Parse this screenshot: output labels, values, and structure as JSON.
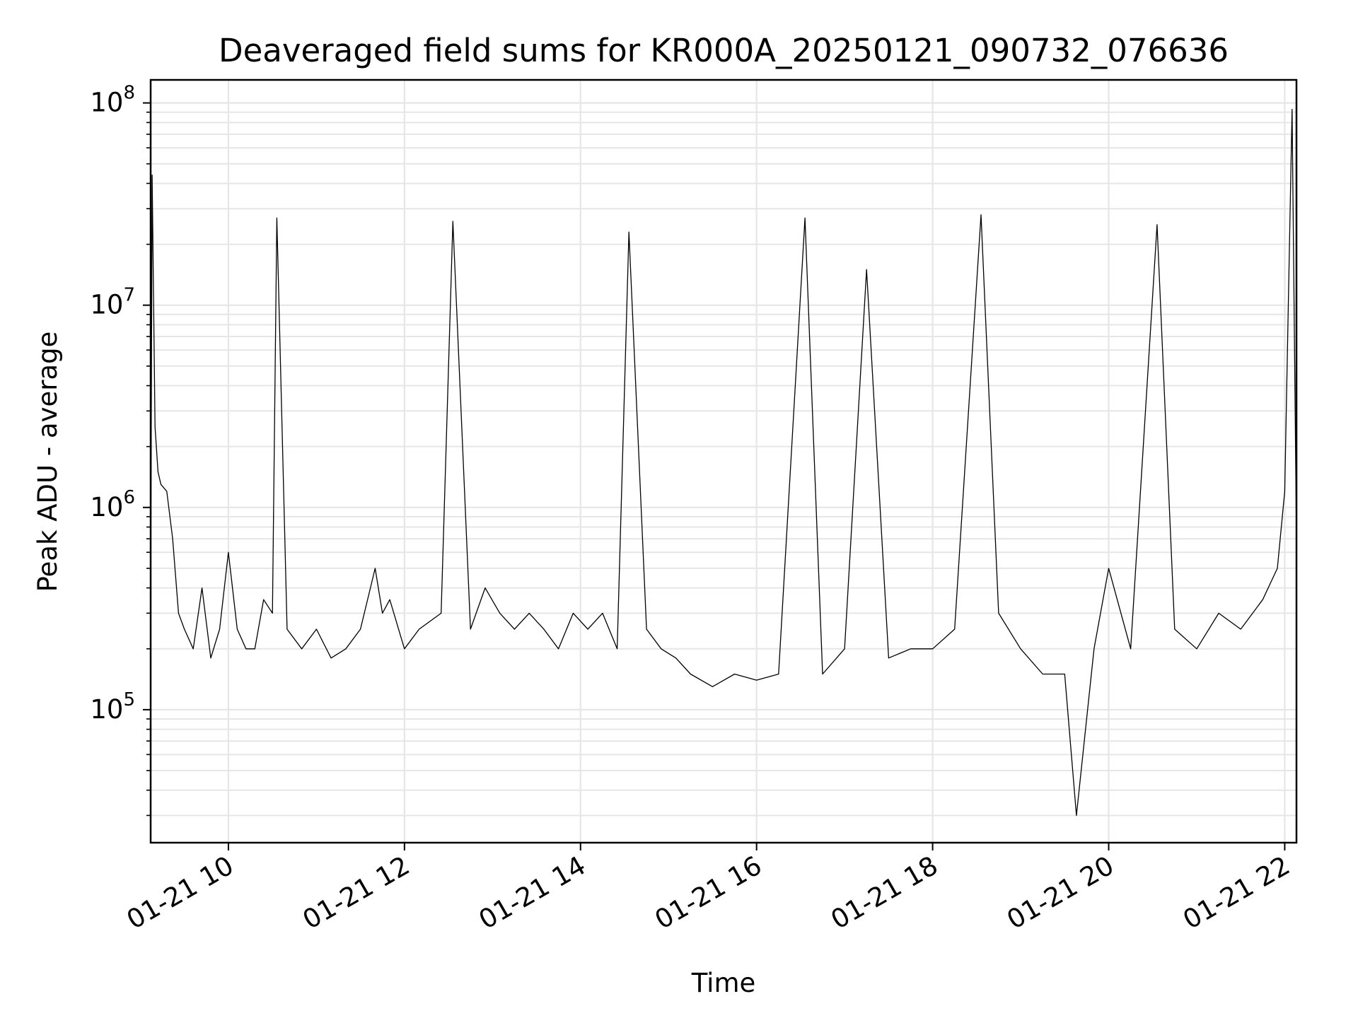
{
  "chart_data": {
    "type": "line",
    "title": "Deaveraged field sums for KR000A_20250121_090732_076636",
    "xlabel": "Time",
    "ylabel": "Peak ADU - average",
    "yscale": "log",
    "ylim": [
      22000,
      130000000
    ],
    "xlim": [
      "2025-01-21 09:07",
      "2025-01-21 22:08"
    ],
    "x_tick_labels": [
      "01-21 10",
      "01-21 12",
      "01-21 14",
      "01-21 16",
      "01-21 18",
      "01-21 20",
      "01-21 22"
    ],
    "x_tick_times": [
      "2025-01-21 10:00",
      "2025-01-21 12:00",
      "2025-01-21 14:00",
      "2025-01-21 16:00",
      "2025-01-21 18:00",
      "2025-01-21 20:00",
      "2025-01-21 22:00"
    ],
    "y_ticks": [
      {
        "base": "10",
        "exp": "5",
        "value": 100000
      },
      {
        "base": "10",
        "exp": "6",
        "value": 1000000
      },
      {
        "base": "10",
        "exp": "7",
        "value": 10000000
      },
      {
        "base": "10",
        "exp": "8",
        "value": 100000000
      }
    ],
    "grid": true,
    "line_color": "#000000",
    "grid_color": "#e6e6e6",
    "series": [
      {
        "x": [
          "2025-01-21 09:07",
          "2025-01-21 09:08",
          "2025-01-21 09:10",
          "2025-01-21 09:12",
          "2025-01-21 09:14",
          "2025-01-21 09:18",
          "2025-01-21 09:22",
          "2025-01-21 09:26",
          "2025-01-21 09:30",
          "2025-01-21 09:36",
          "2025-01-21 09:42",
          "2025-01-21 09:48",
          "2025-01-21 09:54",
          "2025-01-21 10:00",
          "2025-01-21 10:06",
          "2025-01-21 10:12",
          "2025-01-21 10:18",
          "2025-01-21 10:24",
          "2025-01-21 10:30",
          "2025-01-21 10:33",
          "2025-01-21 10:40",
          "2025-01-21 10:50",
          "2025-01-21 11:00",
          "2025-01-21 11:10",
          "2025-01-21 11:20",
          "2025-01-21 11:30",
          "2025-01-21 11:40",
          "2025-01-21 11:45",
          "2025-01-21 11:50",
          "2025-01-21 12:00",
          "2025-01-21 12:10",
          "2025-01-21 12:25",
          "2025-01-21 12:33",
          "2025-01-21 12:45",
          "2025-01-21 12:55",
          "2025-01-21 13:05",
          "2025-01-21 13:15",
          "2025-01-21 13:25",
          "2025-01-21 13:35",
          "2025-01-21 13:45",
          "2025-01-21 13:55",
          "2025-01-21 14:05",
          "2025-01-21 14:15",
          "2025-01-21 14:25",
          "2025-01-21 14:33",
          "2025-01-21 14:45",
          "2025-01-21 14:55",
          "2025-01-21 15:05",
          "2025-01-21 15:15",
          "2025-01-21 15:30",
          "2025-01-21 15:45",
          "2025-01-21 16:00",
          "2025-01-21 16:15",
          "2025-01-21 16:33",
          "2025-01-21 16:45",
          "2025-01-21 17:00",
          "2025-01-21 17:15",
          "2025-01-21 17:30",
          "2025-01-21 17:45",
          "2025-01-21 18:00",
          "2025-01-21 18:15",
          "2025-01-21 18:33",
          "2025-01-21 18:45",
          "2025-01-21 19:00",
          "2025-01-21 19:15",
          "2025-01-21 19:30",
          "2025-01-21 19:38",
          "2025-01-21 19:50",
          "2025-01-21 20:00",
          "2025-01-21 20:15",
          "2025-01-21 20:33",
          "2025-01-21 20:45",
          "2025-01-21 21:00",
          "2025-01-21 21:15",
          "2025-01-21 21:30",
          "2025-01-21 21:45",
          "2025-01-21 21:55",
          "2025-01-21 22:00",
          "2025-01-21 22:05",
          "2025-01-21 22:08"
        ],
        "y": [
          350000,
          44000000,
          2500000,
          1500000,
          1300000,
          1200000,
          700000,
          300000,
          250000,
          200000,
          400000,
          180000,
          250000,
          600000,
          250000,
          200000,
          200000,
          350000,
          300000,
          27000000,
          250000,
          200000,
          250000,
          180000,
          200000,
          250000,
          500000,
          300000,
          350000,
          200000,
          250000,
          300000,
          26000000,
          250000,
          400000,
          300000,
          250000,
          300000,
          250000,
          200000,
          300000,
          250000,
          300000,
          200000,
          23000000,
          250000,
          200000,
          180000,
          150000,
          130000,
          150000,
          140000,
          150000,
          27000000,
          150000,
          200000,
          15000000,
          180000,
          200000,
          200000,
          250000,
          28000000,
          300000,
          200000,
          150000,
          150000,
          30000,
          200000,
          500000,
          200000,
          25000000,
          250000,
          200000,
          300000,
          250000,
          350000,
          500000,
          1200000,
          93000000,
          700000
        ]
      }
    ]
  }
}
